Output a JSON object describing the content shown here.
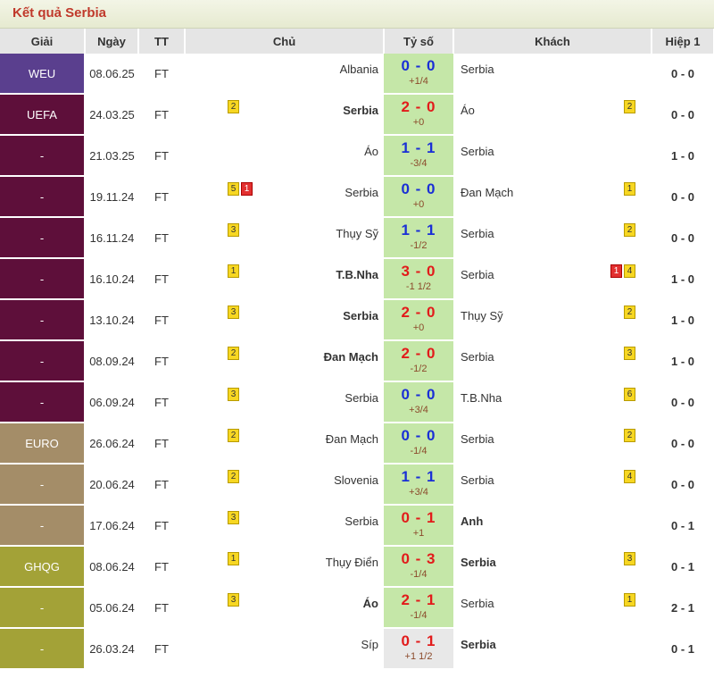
{
  "title": "Kết quả Serbia",
  "headers": [
    "Giải",
    "Ngày",
    "TT",
    "Chủ",
    "Tỷ số",
    "Khách",
    "Hiệp 1"
  ],
  "colors": {
    "WEU": "#5a3f8e",
    "UEFA": "#5e0f3a",
    "EURO": "#a48d68",
    "GHQG": "#a3a237"
  },
  "rows": [
    {
      "league": "WEU",
      "league_color": "#5a3f8e",
      "date": "08.06.25",
      "tt": "FT",
      "home": "Albania",
      "home_bold": false,
      "home_cards": [],
      "score": "0 - 0",
      "score_color": "blue",
      "hc": "+1/4",
      "away": "Serbia",
      "away_bold": false,
      "away_cards": [],
      "half": "0 - 0"
    },
    {
      "league": "UEFA",
      "league_color": "#5e0f3a",
      "date": "24.03.25",
      "tt": "FT",
      "home": "Serbia",
      "home_bold": true,
      "home_cards": [
        {
          "t": "y",
          "v": "2"
        }
      ],
      "score": "2 - 0",
      "score_color": "red",
      "hc": "+0",
      "away": "Áo",
      "away_bold": false,
      "away_cards": [
        {
          "t": "y",
          "v": "2"
        }
      ],
      "half": "0 - 0"
    },
    {
      "league": "-",
      "league_color": "#5e0f3a",
      "date": "21.03.25",
      "tt": "FT",
      "home": "Áo",
      "home_bold": false,
      "home_cards": [],
      "score": "1 - 1",
      "score_color": "blue",
      "hc": "-3/4",
      "away": "Serbia",
      "away_bold": false,
      "away_cards": [],
      "half": "1 - 0"
    },
    {
      "league": "-",
      "league_color": "#5e0f3a",
      "date": "19.11.24",
      "tt": "FT",
      "home": "Serbia",
      "home_bold": false,
      "home_cards": [
        {
          "t": "y",
          "v": "5"
        },
        {
          "t": "r",
          "v": "1"
        }
      ],
      "score": "0 - 0",
      "score_color": "blue",
      "hc": "+0",
      "away": "Đan Mạch",
      "away_bold": false,
      "away_cards": [
        {
          "t": "y",
          "v": "1"
        }
      ],
      "half": "0 - 0"
    },
    {
      "league": "-",
      "league_color": "#5e0f3a",
      "date": "16.11.24",
      "tt": "FT",
      "home": "Thụy Sỹ",
      "home_bold": false,
      "home_cards": [
        {
          "t": "y",
          "v": "3"
        }
      ],
      "score": "1 - 1",
      "score_color": "blue",
      "hc": "-1/2",
      "away": "Serbia",
      "away_bold": false,
      "away_cards": [
        {
          "t": "y",
          "v": "2"
        }
      ],
      "half": "0 - 0"
    },
    {
      "league": "-",
      "league_color": "#5e0f3a",
      "date": "16.10.24",
      "tt": "FT",
      "home": "T.B.Nha",
      "home_bold": true,
      "home_cards": [
        {
          "t": "y",
          "v": "1"
        }
      ],
      "score": "3 - 0",
      "score_color": "red",
      "hc": "-1 1/2",
      "away": "Serbia",
      "away_bold": false,
      "away_cards": [
        {
          "t": "r",
          "v": "1"
        },
        {
          "t": "y",
          "v": "4"
        }
      ],
      "half": "1 - 0"
    },
    {
      "league": "-",
      "league_color": "#5e0f3a",
      "date": "13.10.24",
      "tt": "FT",
      "home": "Serbia",
      "home_bold": true,
      "home_cards": [
        {
          "t": "y",
          "v": "3"
        }
      ],
      "score": "2 - 0",
      "score_color": "red",
      "hc": "+0",
      "away": "Thụy Sỹ",
      "away_bold": false,
      "away_cards": [
        {
          "t": "y",
          "v": "2"
        }
      ],
      "half": "1 - 0"
    },
    {
      "league": "-",
      "league_color": "#5e0f3a",
      "date": "08.09.24",
      "tt": "FT",
      "home": "Đan Mạch",
      "home_bold": true,
      "home_cards": [
        {
          "t": "y",
          "v": "2"
        }
      ],
      "score": "2 - 0",
      "score_color": "red",
      "hc": "-1/2",
      "away": "Serbia",
      "away_bold": false,
      "away_cards": [
        {
          "t": "y",
          "v": "3"
        }
      ],
      "half": "1 - 0"
    },
    {
      "league": "-",
      "league_color": "#5e0f3a",
      "date": "06.09.24",
      "tt": "FT",
      "home": "Serbia",
      "home_bold": false,
      "home_cards": [
        {
          "t": "y",
          "v": "3"
        }
      ],
      "score": "0 - 0",
      "score_color": "blue",
      "hc": "+3/4",
      "away": "T.B.Nha",
      "away_bold": false,
      "away_cards": [
        {
          "t": "y",
          "v": "6"
        }
      ],
      "half": "0 - 0"
    },
    {
      "league": "EURO",
      "league_color": "#a48d68",
      "date": "26.06.24",
      "tt": "FT",
      "home": "Đan Mạch",
      "home_bold": false,
      "home_cards": [
        {
          "t": "y",
          "v": "2"
        }
      ],
      "score": "0 - 0",
      "score_color": "blue",
      "hc": "-1/4",
      "away": "Serbia",
      "away_bold": false,
      "away_cards": [
        {
          "t": "y",
          "v": "2"
        }
      ],
      "half": "0 - 0"
    },
    {
      "league": "-",
      "league_color": "#a48d68",
      "date": "20.06.24",
      "tt": "FT",
      "home": "Slovenia",
      "home_bold": false,
      "home_cards": [
        {
          "t": "y",
          "v": "2"
        }
      ],
      "score": "1 - 1",
      "score_color": "blue",
      "hc": "+3/4",
      "away": "Serbia",
      "away_bold": false,
      "away_cards": [
        {
          "t": "y",
          "v": "4"
        }
      ],
      "half": "0 - 0"
    },
    {
      "league": "-",
      "league_color": "#a48d68",
      "date": "17.06.24",
      "tt": "FT",
      "home": "Serbia",
      "home_bold": false,
      "home_cards": [
        {
          "t": "y",
          "v": "3"
        }
      ],
      "score": "0 - 1",
      "score_color": "red",
      "hc": "+1",
      "away": "Anh",
      "away_bold": true,
      "away_cards": [],
      "half": "0 - 1"
    },
    {
      "league": "GHQG",
      "league_color": "#a3a237",
      "date": "08.06.24",
      "tt": "FT",
      "home": "Thụy Điển",
      "home_bold": false,
      "home_cards": [
        {
          "t": "y",
          "v": "1"
        }
      ],
      "score": "0 - 3",
      "score_color": "red",
      "hc": "-1/4",
      "away": "Serbia",
      "away_bold": true,
      "away_cards": [
        {
          "t": "y",
          "v": "3"
        }
      ],
      "half": "0 - 1"
    },
    {
      "league": "-",
      "league_color": "#a3a237",
      "date": "05.06.24",
      "tt": "FT",
      "home": "Áo",
      "home_bold": true,
      "home_cards": [
        {
          "t": "y",
          "v": "3"
        }
      ],
      "score": "2 - 1",
      "score_color": "red",
      "hc": "-1/4",
      "away": "Serbia",
      "away_bold": false,
      "away_cards": [
        {
          "t": "y",
          "v": "1"
        }
      ],
      "half": "2 - 1"
    },
    {
      "league": "-",
      "league_color": "#a3a237",
      "date": "26.03.24",
      "tt": "FT",
      "home": "Síp",
      "home_bold": false,
      "home_cards": [],
      "score": "0 - 1",
      "score_color": "red",
      "score_bg": "gray",
      "hc": "+1 1/2",
      "away": "Serbia",
      "away_bold": true,
      "away_cards": [],
      "half": "0 - 1"
    }
  ]
}
